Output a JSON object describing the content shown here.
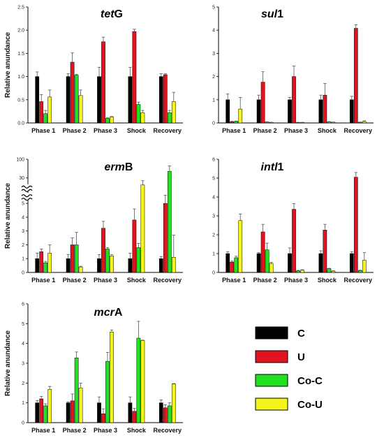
{
  "colors": {
    "C": "#000000",
    "U": "#e0141e",
    "Co-C": "#22e022",
    "Co-U": "#f5f51e"
  },
  "legend": [
    {
      "label": "C",
      "key": "C"
    },
    {
      "label": "U",
      "key": "U"
    },
    {
      "label": "Co-C",
      "key": "Co-C"
    },
    {
      "label": "Co-U",
      "key": "Co-U"
    }
  ],
  "chart_data": [
    {
      "type": "bar",
      "title_main": "tet",
      "title_suffix": "G",
      "ylabel": "Relative anundance",
      "categories": [
        "Phase 1",
        "Phase 2",
        "Phase 3",
        "Shock",
        "Recovery"
      ],
      "ylim": [
        0,
        2.5
      ],
      "yticks": [
        "0.0",
        "0.5",
        "1.0",
        "1.5",
        "2.0",
        "2.5"
      ],
      "series": [
        {
          "name": "C",
          "values": [
            1.0,
            1.0,
            1.0,
            1.0,
            1.0
          ],
          "errors": [
            0.1,
            0.06,
            0.2,
            0.2,
            0.06
          ]
        },
        {
          "name": "U",
          "values": [
            0.46,
            1.31,
            1.75,
            1.97,
            1.04
          ],
          "errors": [
            0.15,
            0.2,
            0.1,
            0.05,
            0.02
          ]
        },
        {
          "name": "Co-C",
          "values": [
            0.2,
            1.03,
            0.1,
            0.4,
            0.22
          ],
          "errors": [
            0.07,
            0.02,
            0.01,
            0.05,
            0.05
          ]
        },
        {
          "name": "Co-U",
          "values": [
            0.56,
            0.59,
            0.13,
            0.22,
            0.46
          ],
          "errors": [
            0.15,
            0.12,
            0.01,
            0.05,
            0.2
          ]
        }
      ]
    },
    {
      "type": "bar",
      "title_main": "sul",
      "title_suffix": "1",
      "ylabel": "",
      "categories": [
        "Phase 1",
        "Phase 2",
        "Phase 3",
        "Shock",
        "Recovery"
      ],
      "ylim": [
        0,
        5
      ],
      "yticks": [
        "0",
        "1",
        "2",
        "3",
        "4",
        "5"
      ],
      "series": [
        {
          "name": "C",
          "values": [
            1.0,
            1.0,
            1.0,
            1.0,
            1.0
          ],
          "errors": [
            0.25,
            0.2,
            0.1,
            0.2,
            0.15
          ]
        },
        {
          "name": "U",
          "values": [
            0.05,
            1.76,
            2.0,
            1.2,
            4.08
          ],
          "errors": [
            0.02,
            0.45,
            0.45,
            0.5,
            0.15
          ]
        },
        {
          "name": "Co-C",
          "values": [
            0.07,
            0.04,
            0.02,
            0.05,
            0.03
          ],
          "errors": [
            0.01,
            0.01,
            0.01,
            0.01,
            0.01
          ]
        },
        {
          "name": "Co-U",
          "values": [
            0.6,
            0.02,
            0.02,
            0.03,
            0.06
          ],
          "errors": [
            0.5,
            0.01,
            0.01,
            0.01,
            0.03
          ]
        }
      ]
    },
    {
      "type": "bar",
      "title_main": "erm",
      "title_suffix": "B",
      "ylabel": "Relative anundance",
      "categories": [
        "Phase 1",
        "Phase 2",
        "Phase 3",
        "Shock",
        "Recovery"
      ],
      "broken_axis": true,
      "ylim": [
        0,
        100
      ],
      "yticks": [
        "0",
        "1",
        "2",
        "3",
        "4",
        "5",
        "30",
        "100"
      ],
      "series": [
        {
          "name": "C",
          "values": [
            1.0,
            1.0,
            1.0,
            1.0,
            1.0
          ],
          "errors": [
            0.4,
            0.3,
            0.3,
            0.4,
            0.15
          ]
        },
        {
          "name": "U",
          "values": [
            1.5,
            2.0,
            3.2,
            3.8,
            5.0
          ],
          "errors": [
            0.2,
            0.5,
            0.5,
            0.8,
            0.3
          ]
        },
        {
          "name": "Co-C",
          "values": [
            0.7,
            2.0,
            1.7,
            1.8,
            55
          ],
          "errors": [
            0.1,
            0.9,
            0.1,
            0.3,
            20
          ]
        },
        {
          "name": "Co-U",
          "values": [
            1.4,
            0.4,
            1.2,
            20,
            1.1
          ],
          "errors": [
            0.6,
            0.05,
            0.1,
            6,
            1.6
          ]
        }
      ]
    },
    {
      "type": "bar",
      "title_main": "intl",
      "title_suffix": "1",
      "ylabel": "",
      "categories": [
        "Phase 1",
        "Phase 2",
        "Phase 3",
        "Shock",
        "Recovery"
      ],
      "ylim": [
        0,
        6
      ],
      "yticks": [
        "0",
        "1",
        "2",
        "3",
        "4",
        "5",
        "6"
      ],
      "series": [
        {
          "name": "C",
          "values": [
            1.0,
            1.0,
            1.0,
            1.0,
            1.0
          ],
          "errors": [
            0.1,
            0.05,
            0.3,
            0.15,
            0.1
          ]
        },
        {
          "name": "U",
          "values": [
            0.55,
            2.15,
            3.35,
            2.25,
            5.05
          ],
          "errors": [
            0.05,
            0.4,
            0.3,
            0.3,
            0.25
          ]
        },
        {
          "name": "Co-C",
          "values": [
            0.78,
            1.2,
            0.08,
            0.2,
            0.1
          ],
          "errors": [
            0.08,
            0.35,
            0.03,
            0.02,
            0.02
          ]
        },
        {
          "name": "Co-U",
          "values": [
            2.75,
            0.48,
            0.12,
            0.07,
            0.65
          ],
          "errors": [
            0.35,
            0.05,
            0.02,
            0.02,
            0.4
          ]
        }
      ]
    },
    {
      "type": "bar",
      "title_main": "mcr",
      "title_suffix": "A",
      "ylabel": "Relative anundance",
      "categories": [
        "Phase 1",
        "Phase 2",
        "Phase 3",
        "Shock",
        "Recovery"
      ],
      "ylim": [
        0,
        6
      ],
      "yticks": [
        "0",
        "1",
        "2",
        "3",
        "4",
        "5",
        "6"
      ],
      "series": [
        {
          "name": "C",
          "values": [
            1.0,
            1.0,
            1.0,
            1.0,
            1.0
          ],
          "errors": [
            0.12,
            0.05,
            0.3,
            0.3,
            0.15
          ]
        },
        {
          "name": "U",
          "values": [
            1.2,
            1.1,
            0.45,
            0.57,
            0.75
          ],
          "errors": [
            0.12,
            0.35,
            0.25,
            0.15,
            0.15
          ]
        },
        {
          "name": "Co-C",
          "values": [
            0.85,
            3.27,
            3.1,
            4.27,
            0.85
          ],
          "errors": [
            0.1,
            0.3,
            0.45,
            0.85,
            0.15
          ]
        },
        {
          "name": "Co-U",
          "values": [
            1.68,
            1.75,
            4.58,
            4.15,
            1.95
          ],
          "errors": [
            0.15,
            0.25,
            0.1,
            0.02,
            0.02
          ]
        }
      ]
    }
  ]
}
